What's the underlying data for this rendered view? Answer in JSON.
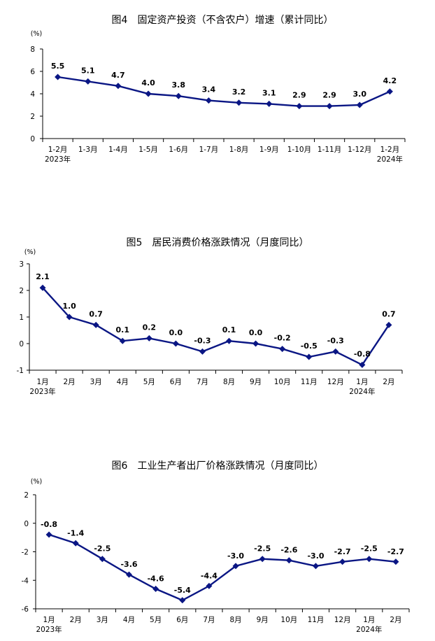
{
  "chart_data": [
    {
      "type": "line",
      "title": "图4　固定资产投资（不含农户）增速（累计同比）",
      "unit": "(%)",
      "categories": [
        "1-2月",
        "1-3月",
        "1-4月",
        "1-5月",
        "1-6月",
        "1-7月",
        "1-8月",
        "1-9月",
        "1-10月",
        "1-11月",
        "1-12月",
        "1-2月"
      ],
      "year_labels": [
        {
          "index": 0,
          "text": "2023年"
        },
        {
          "index": 11,
          "text": "2024年"
        }
      ],
      "values": [
        5.5,
        5.1,
        4.7,
        4.0,
        3.8,
        3.4,
        3.2,
        3.1,
        2.9,
        2.9,
        3.0,
        4.2
      ],
      "value_labels": [
        "5.5",
        "5.1",
        "4.7",
        "4.0",
        "3.8",
        "3.4",
        "3.2",
        "3.1",
        "2.9",
        "2.9",
        "3.0",
        "4.2"
      ],
      "yticks": [
        0,
        2,
        4,
        6,
        8
      ],
      "ylim": [
        0,
        8
      ],
      "grid": false,
      "color": "#0a1684"
    },
    {
      "type": "line",
      "title": "图5　居民消费价格涨跌情况（月度同比）",
      "unit": "(%)",
      "categories": [
        "1月",
        "2月",
        "3月",
        "4月",
        "5月",
        "6月",
        "7月",
        "8月",
        "9月",
        "10月",
        "11月",
        "12月",
        "1月",
        "2月"
      ],
      "year_labels": [
        {
          "index": 0,
          "text": "2023年"
        },
        {
          "index": 12,
          "text": "2024年"
        }
      ],
      "values": [
        2.1,
        1.0,
        0.7,
        0.1,
        0.2,
        0.0,
        -0.3,
        0.1,
        0.0,
        -0.2,
        -0.5,
        -0.3,
        -0.8,
        0.7
      ],
      "value_labels": [
        "2.1",
        "1.0",
        "0.7",
        "0.1",
        "0.2",
        "0.0",
        "-0.3",
        "0.1",
        "0.0",
        "-0.2",
        "-0.5",
        "-0.3",
        "-0.8",
        "0.7"
      ],
      "yticks": [
        -1,
        0,
        1,
        2,
        3
      ],
      "ylim": [
        -1,
        3
      ],
      "grid": false,
      "color": "#0a1684"
    },
    {
      "type": "line",
      "title": "图6　工业生产者出厂价格涨跌情况（月度同比）",
      "unit": "(%)",
      "categories": [
        "1月",
        "2月",
        "3月",
        "4月",
        "5月",
        "6月",
        "7月",
        "8月",
        "9月",
        "10月",
        "11月",
        "12月",
        "1月",
        "2月"
      ],
      "year_labels": [
        {
          "index": 0,
          "text": "2023年"
        },
        {
          "index": 12,
          "text": "2024年"
        }
      ],
      "values": [
        -0.8,
        -1.4,
        -2.5,
        -3.6,
        -4.6,
        -5.4,
        -4.4,
        -3.0,
        -2.5,
        -2.6,
        -3.0,
        -2.7,
        -2.5,
        -2.7
      ],
      "value_labels": [
        "-0.8",
        "-1.4",
        "-2.5",
        "-3.6",
        "-4.6",
        "-5.4",
        "-4.4",
        "-3.0",
        "-2.5",
        "-2.6",
        "-3.0",
        "-2.7",
        "-2.5",
        "-2.7"
      ],
      "yticks": [
        -6,
        -4,
        -2,
        0,
        2
      ],
      "ylim": [
        -6,
        2
      ],
      "grid": false,
      "color": "#0a1684"
    }
  ]
}
